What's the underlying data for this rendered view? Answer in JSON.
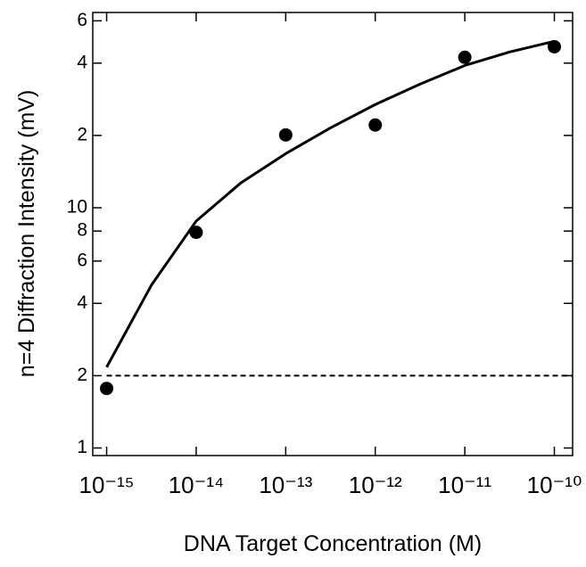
{
  "chart_data": {
    "type": "scatter",
    "x_label": "DNA Target Concentration (M)",
    "y_label": "n=4 Diffraction Intensity (mV)",
    "x_log": true,
    "y_log": true,
    "xlim": [
      7e-16,
      1.6e-10
    ],
    "ylim": [
      0.93,
      65
    ],
    "xticks": [
      {
        "value": 1e-15,
        "label": "10⁻¹⁵"
      },
      {
        "value": 1e-14,
        "label": "10⁻¹⁴"
      },
      {
        "value": 1e-13,
        "label": "10⁻¹³"
      },
      {
        "value": 1e-12,
        "label": "10⁻¹²"
      },
      {
        "value": 1e-11,
        "label": "10⁻¹¹"
      },
      {
        "value": 1e-10,
        "label": "10⁻¹⁰"
      }
    ],
    "yticks": [
      1,
      2,
      4,
      6,
      8,
      10,
      {
        "value": 20,
        "label": "2"
      },
      {
        "value": 40,
        "label": "4"
      },
      {
        "value": 60,
        "label": "6"
      }
    ],
    "series": [
      {
        "style": "markers",
        "color": "#000000",
        "x": [
          1e-15,
          1e-14,
          1e-13,
          1e-12,
          1e-11,
          1e-10
        ],
        "values": [
          1.77,
          7.9,
          20.1,
          22.1,
          42.3,
          46.8
        ]
      },
      {
        "style": "line",
        "color": "#000000",
        "x": [
          1e-15,
          3.16e-15,
          1e-14,
          3.16e-14,
          1e-13,
          3.16e-13,
          1e-12,
          3.16e-12,
          1e-11,
          3.16e-11,
          1e-10
        ],
        "values": [
          2.17,
          4.76,
          8.8,
          12.7,
          16.8,
          21.5,
          26.9,
          32.7,
          39.1,
          44.5,
          49.3
        ]
      }
    ],
    "hline": {
      "value": 2,
      "x_start": 1e-15,
      "dash": true
    }
  }
}
